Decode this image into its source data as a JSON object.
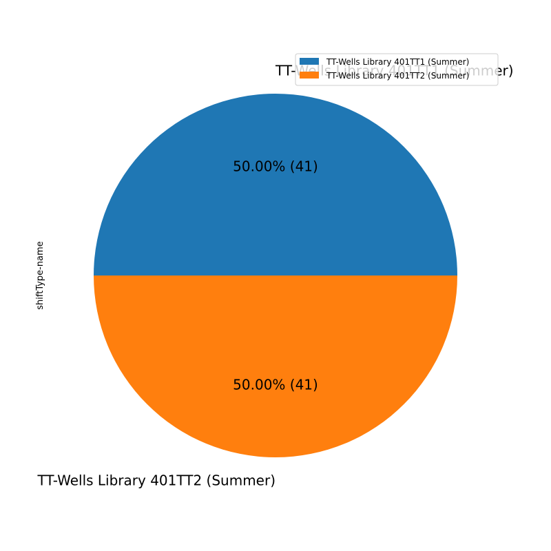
{
  "chart_data": {
    "type": "pie",
    "ylabel": "shiftType-name",
    "categories": [
      "TT-Wells Library 401TT1 (Summer)",
      "TT-Wells Library 401TT2 (Summer)"
    ],
    "values": [
      41,
      41
    ],
    "percent_labels": [
      "50.00%  (41)",
      "50.00%  (41)"
    ],
    "colors": [
      "#1f77b4",
      "#ff7f0e"
    ],
    "legend": {
      "placement": "top-right",
      "entries": [
        "TT-Wells Library 401TT1 (Summer)",
        "TT-Wells Library 401TT2 (Summer)"
      ]
    }
  }
}
